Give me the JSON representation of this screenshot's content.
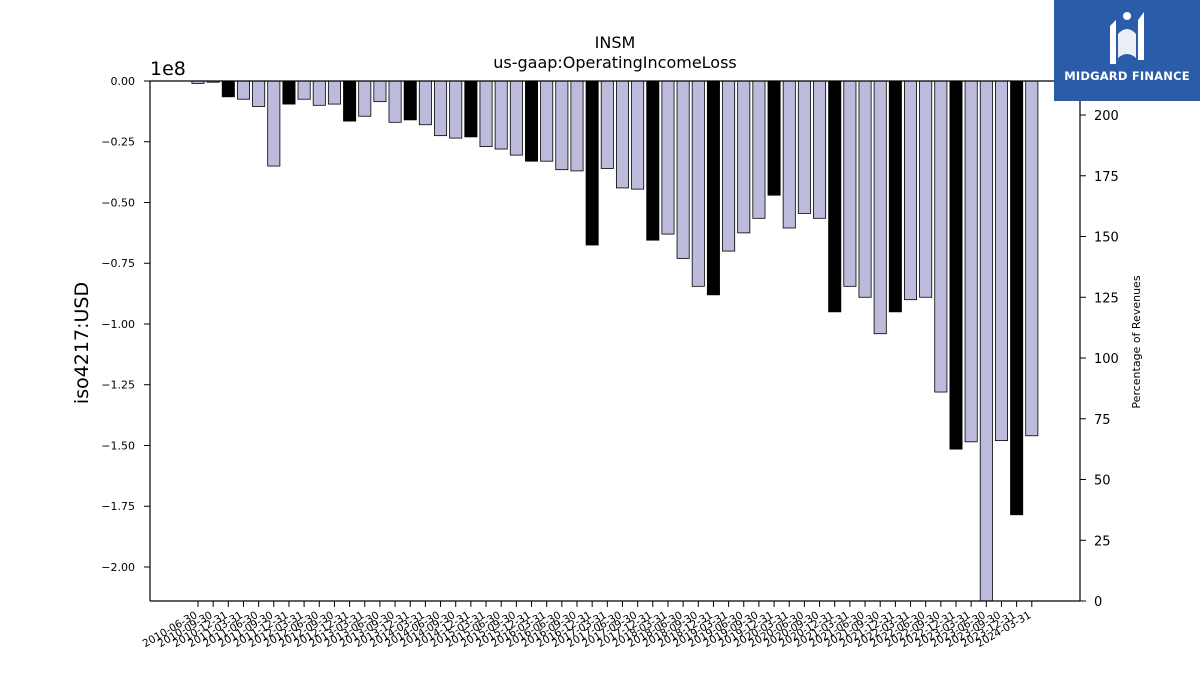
{
  "chart_data": {
    "type": "bar",
    "title": "INSM",
    "subtitle": "us-gaap:OperatingIncomeLoss",
    "ylabel": "iso4217:USD",
    "y_offset_label": "1e8",
    "y2label": "Percentage of Revenues",
    "ylim": [
      -2.14,
      0.0
    ],
    "y_scale_factor": 100000000,
    "y2lim": [
      0,
      214
    ],
    "y_ticks": [
      "0.00",
      "−0.25",
      "−0.50",
      "−0.75",
      "−1.00",
      "−1.25",
      "−1.50",
      "−1.75",
      "−2.00"
    ],
    "y_tick_values": [
      0.0,
      -0.25,
      -0.5,
      -0.75,
      -1.0,
      -1.25,
      -1.5,
      -1.75,
      -2.0
    ],
    "y2_ticks": [
      "0",
      "25",
      "50",
      "75",
      "100",
      "125",
      "150",
      "175",
      "200"
    ],
    "y2_tick_values": [
      0,
      25,
      50,
      75,
      100,
      125,
      150,
      175,
      200
    ],
    "x_tick_labels": [
      "2010-06-30",
      "2010-09-30",
      "2010-12-31",
      "2011-03-31",
      "2011-06-30",
      "2011-09-30",
      "2011-12-31",
      "2012-03-31",
      "2012-06-30",
      "2012-09-30",
      "2012-12-31",
      "2013-03-31",
      "2013-06-30",
      "2013-09-30",
      "2013-12-31",
      "2014-03-31",
      "2014-06-30",
      "2014-09-30",
      "2014-12-31",
      "2015-03-31",
      "2015-06-30",
      "2015-09-30",
      "2015-12-31",
      "2016-03-31",
      "2016-06-30",
      "2016-09-30",
      "2016-12-31",
      "2017-03-31",
      "2017-06-30",
      "2017-09-30",
      "2017-12-31",
      "2018-03-31",
      "2018-06-30",
      "2018-09-30",
      "2018-12-31",
      "2019-03-31",
      "2019-06-30",
      "2019-09-30",
      "2019-12-31",
      "2020-03-31",
      "2020-06-30",
      "2020-09-30",
      "2020-12-31",
      "2021-03-31",
      "2021-06-30",
      "2021-09-30",
      "2021-12-31",
      "2022-03-31",
      "2022-06-30",
      "2022-09-30",
      "2022-12-31",
      "2023-03-31",
      "2023-06-30",
      "2023-09-30",
      "2023-12-31",
      "2024-03-31"
    ],
    "series": [
      {
        "values": [
          -0.01,
          -0.005,
          -0.065,
          -0.075,
          -0.105,
          -0.35,
          -0.095,
          -0.075,
          -0.1,
          -0.095,
          -0.165,
          -0.145,
          -0.085,
          -0.17,
          -0.16,
          -0.18,
          -0.225,
          -0.235,
          -0.23,
          -0.27,
          -0.28,
          -0.305,
          -0.33,
          -0.33,
          -0.365,
          -0.37,
          -0.675,
          -0.36,
          -0.44,
          -0.445,
          -0.655,
          -0.63,
          -0.73,
          -0.845,
          -0.88,
          -0.7,
          -0.625,
          -0.565,
          -0.47,
          -0.605,
          -0.545,
          -0.565,
          -0.95,
          -0.845,
          -0.89,
          -1.04,
          -0.95,
          -0.9,
          -0.89,
          -1.28,
          -1.515,
          -1.485,
          -2.14,
          -1.48,
          -1.785,
          -1.46
        ],
        "bar_kind": [
          "q",
          "q",
          "a",
          "q",
          "q",
          "q",
          "a",
          "q",
          "q",
          "q",
          "a",
          "q",
          "q",
          "q",
          "a",
          "q",
          "q",
          "q",
          "a",
          "q",
          "q",
          "q",
          "a",
          "q",
          "q",
          "q",
          "a",
          "q",
          "q",
          "q",
          "a",
          "q",
          "q",
          "q",
          "a",
          "q",
          "q",
          "q",
          "a",
          "q",
          "q",
          "q",
          "a",
          "q",
          "q",
          "q",
          "a",
          "q",
          "q",
          "q",
          "a",
          "q",
          "q",
          "q",
          "a",
          "q"
        ]
      }
    ],
    "colors": {
      "quarterly": "#bdbbdb",
      "annual": "#000000",
      "edge": "#000000"
    },
    "grid": false
  },
  "brand": {
    "name": "MIDGARD FINANCE"
  }
}
